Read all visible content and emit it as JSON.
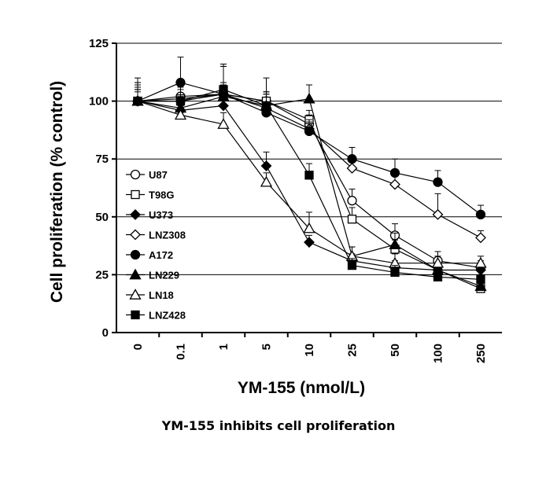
{
  "caption": "YM-155 inhibits cell proliferation",
  "chart_data": {
    "type": "line",
    "xlabel": "YM-155 (nmol/L)",
    "ylabel": "Cell proliferation (% control)",
    "categories": [
      "0",
      "0.1",
      "1",
      "5",
      "10",
      "25",
      "50",
      "100",
      "250"
    ],
    "ylim": [
      0,
      125
    ],
    "yticks": [
      0,
      25,
      50,
      75,
      100,
      125
    ],
    "grid": "horizontal",
    "legend_placement": "left",
    "series": [
      {
        "name": "U87",
        "marker": "circle-open",
        "values": [
          100,
          102,
          103,
          100,
          90,
          57,
          42,
          31,
          28
        ],
        "err": [
          6,
          5,
          4,
          4,
          4,
          5,
          5,
          4,
          3
        ]
      },
      {
        "name": "T98G",
        "marker": "square-open",
        "values": [
          100,
          101,
          103,
          100,
          92,
          49,
          36,
          27,
          19
        ],
        "err": [
          5,
          6,
          5,
          4,
          4,
          5,
          4,
          3,
          3
        ]
      },
      {
        "name": "U373",
        "marker": "diamond-filled",
        "values": [
          100,
          96,
          98,
          72,
          39,
          31,
          28,
          27,
          27
        ],
        "err": [
          4,
          5,
          6,
          6,
          3,
          3,
          3,
          3,
          3
        ]
      },
      {
        "name": "LNZ308",
        "marker": "diamond-open",
        "values": [
          100,
          100,
          103,
          97,
          88,
          71,
          64,
          51,
          41
        ],
        "err": [
          8,
          6,
          13,
          7,
          4,
          5,
          6,
          9,
          3
        ]
      },
      {
        "name": "A172",
        "marker": "circle-filled",
        "values": [
          100,
          108,
          103,
          95,
          87,
          75,
          69,
          65,
          51
        ],
        "err": [
          5,
          11,
          12,
          8,
          4,
          5,
          6,
          5,
          4
        ]
      },
      {
        "name": "LN229",
        "marker": "triangle-filled",
        "values": [
          100,
          97,
          102,
          98,
          101,
          33,
          38,
          27,
          20
        ],
        "err": [
          7,
          5,
          5,
          5,
          6,
          4,
          5,
          3,
          3
        ]
      },
      {
        "name": "LN18",
        "marker": "triangle-open",
        "values": [
          100,
          94,
          90,
          65,
          45,
          33,
          30,
          30,
          30
        ],
        "err": [
          8,
          4,
          5,
          4,
          7,
          4,
          4,
          3,
          3
        ]
      },
      {
        "name": "LNZ428",
        "marker": "square-filled",
        "values": [
          100,
          100,
          105,
          98,
          68,
          29,
          26,
          24,
          23
        ],
        "err": [
          10,
          5,
          10,
          12,
          5,
          3,
          3,
          2,
          2
        ]
      }
    ]
  }
}
